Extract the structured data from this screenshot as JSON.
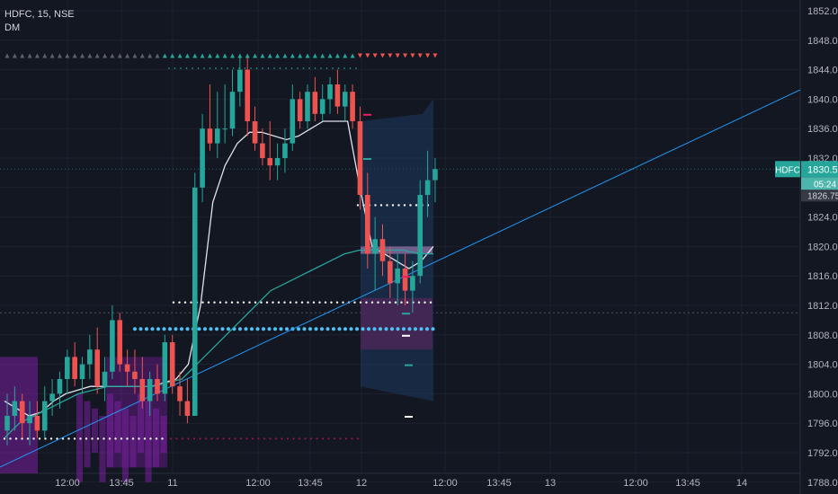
{
  "header": {
    "symbol_label": "HDFC, 15, NSE",
    "indicator_label": "DM"
  },
  "price_tag": {
    "symbol": "HDFC",
    "price": "1830.50",
    "countdown": "05:24",
    "secondary_price": "1826.75"
  },
  "colors": {
    "background": "#131722",
    "grid": "#1e222d",
    "up": "#26a69a",
    "down": "#ef5350",
    "ma": "#e0e3eb",
    "ma_slow": "#26a69a",
    "trendline": "#2196f3",
    "dots_blue": "#4fc3f7",
    "dots_white": "#ffffff",
    "dots_pink": "#ad1457",
    "magenta": "#7b1fa2",
    "tag_bg": "#26a69a",
    "countdown_bg": "#4db6ac",
    "secondary_tag_bg": "#363a45"
  },
  "chart_data": {
    "type": "candlestick",
    "y_ticks": [
      "1852.00",
      "1848.00",
      "1844.00",
      "1840.00",
      "1836.00",
      "1832.00",
      "1828.00",
      "1824.00",
      "1820.00",
      "1816.00",
      "1812.00",
      "1808.00",
      "1804.00",
      "1800.00",
      "1796.00",
      "1792.00",
      "1788.00"
    ],
    "x_ticks": [
      "12:00",
      "13:45",
      "11",
      "12:00",
      "13:45",
      "12",
      "12:00",
      "13:45",
      "13",
      "12:00",
      "13:45",
      "14"
    ],
    "ylim": [
      1785,
      1853
    ],
    "candles": [
      [
        1795,
        1800,
        1793,
        1797
      ],
      [
        1797,
        1801,
        1795,
        1799
      ],
      [
        1799,
        1800,
        1794,
        1796
      ],
      [
        1796,
        1799,
        1793,
        1797
      ],
      [
        1797,
        1799,
        1794,
        1795
      ],
      [
        1795,
        1801,
        1794,
        1799
      ],
      [
        1799,
        1802,
        1797,
        1800
      ],
      [
        1800,
        1803,
        1798,
        1802
      ],
      [
        1802,
        1806,
        1800,
        1805
      ],
      [
        1805,
        1807,
        1801,
        1802
      ],
      [
        1802,
        1805,
        1800,
        1804
      ],
      [
        1804,
        1808,
        1802,
        1806
      ],
      [
        1806,
        1809,
        1800,
        1801
      ],
      [
        1801,
        1805,
        1799,
        1803
      ],
      [
        1803,
        1812,
        1802,
        1810
      ],
      [
        1810,
        1811,
        1803,
        1804
      ],
      [
        1804,
        1806,
        1801,
        1803
      ],
      [
        1803,
        1806,
        1800,
        1802
      ],
      [
        1802,
        1805,
        1798,
        1799
      ],
      [
        1799,
        1803,
        1797,
        1802
      ],
      [
        1802,
        1804,
        1799,
        1800
      ],
      [
        1800,
        1808,
        1799,
        1807
      ],
      [
        1807,
        1808,
        1800,
        1801
      ],
      [
        1801,
        1803,
        1797,
        1799
      ],
      [
        1799,
        1802,
        1796,
        1797
      ],
      [
        1797,
        1830,
        1797,
        1828
      ],
      [
        1828,
        1838,
        1826,
        1836
      ],
      [
        1836,
        1842,
        1833,
        1834
      ],
      [
        1834,
        1841,
        1832,
        1836
      ],
      [
        1836,
        1842,
        1834,
        1836
      ],
      [
        1836,
        1844,
        1835,
        1841
      ],
      [
        1841,
        1846,
        1839,
        1844
      ],
      [
        1844,
        1846,
        1835,
        1837
      ],
      [
        1837,
        1839,
        1833,
        1834
      ],
      [
        1834,
        1836,
        1831,
        1832
      ],
      [
        1832,
        1837,
        1829,
        1831
      ],
      [
        1831,
        1834,
        1829,
        1832
      ],
      [
        1832,
        1836,
        1830,
        1834
      ],
      [
        1834,
        1842,
        1833,
        1840
      ],
      [
        1840,
        1841,
        1836,
        1837
      ],
      [
        1837,
        1842,
        1836,
        1841
      ],
      [
        1841,
        1843,
        1837,
        1838
      ],
      [
        1838,
        1842,
        1837,
        1840
      ],
      [
        1840,
        1843,
        1838,
        1842
      ],
      [
        1842,
        1844,
        1838,
        1839
      ],
      [
        1839,
        1842,
        1837,
        1841
      ],
      [
        1841,
        1842,
        1836,
        1837
      ],
      [
        1837,
        1839,
        1825,
        1827
      ],
      [
        1827,
        1830,
        1817,
        1819
      ],
      [
        1819,
        1824,
        1814,
        1821
      ],
      [
        1821,
        1823,
        1816,
        1818
      ],
      [
        1818,
        1820,
        1813,
        1815
      ],
      [
        1815,
        1819,
        1812,
        1817
      ],
      [
        1817,
        1819,
        1812,
        1814
      ],
      [
        1814,
        1818,
        1811,
        1816
      ],
      [
        1816,
        1829,
        1815,
        1827
      ],
      [
        1827,
        1833,
        1824,
        1829
      ],
      [
        1829,
        1832,
        1826,
        1830.5
      ]
    ],
    "series": [
      {
        "name": "",
        "values": [
          1799,
          1798,
          1797,
          1797.5,
          1799,
          1800,
          1800.5,
          1801,
          1801,
          1801,
          1801,
          1801,
          1801,
          1801.5,
          1802,
          1804,
          1812,
          1826,
          1831,
          1834,
          1835.5,
          1835.5,
          1835,
          1834.5,
          1835,
          1836,
          1837,
          1837,
          1837,
          1828,
          1820,
          1819,
          1818,
          1817,
          1818,
          1820
        ]
      },
      {
        "name": "",
        "values": [
          1794,
          1796,
          1797,
          1798,
          1799,
          1800,
          1800.5,
          1801,
          1801,
          1801,
          1801,
          1801.5,
          1802,
          1804,
          1806,
          1808,
          1810,
          1812,
          1814,
          1815,
          1816,
          1817,
          1818,
          1819,
          1819.5,
          1819.5,
          1819.5,
          1819.5,
          1819,
          1819
        ]
      }
    ],
    "levels": [
      {
        "name": "",
        "price": 1808.8,
        "style": "dots-blue"
      },
      {
        "name": "",
        "price": 1825.6,
        "style": "dots-white"
      },
      {
        "name": "",
        "price": 1812.4,
        "style": "dots-white"
      },
      {
        "name": "",
        "price": 1793.9,
        "style": "dots-white"
      },
      {
        "name": "",
        "price": 1793.9,
        "style": "dots-pink"
      }
    ]
  }
}
